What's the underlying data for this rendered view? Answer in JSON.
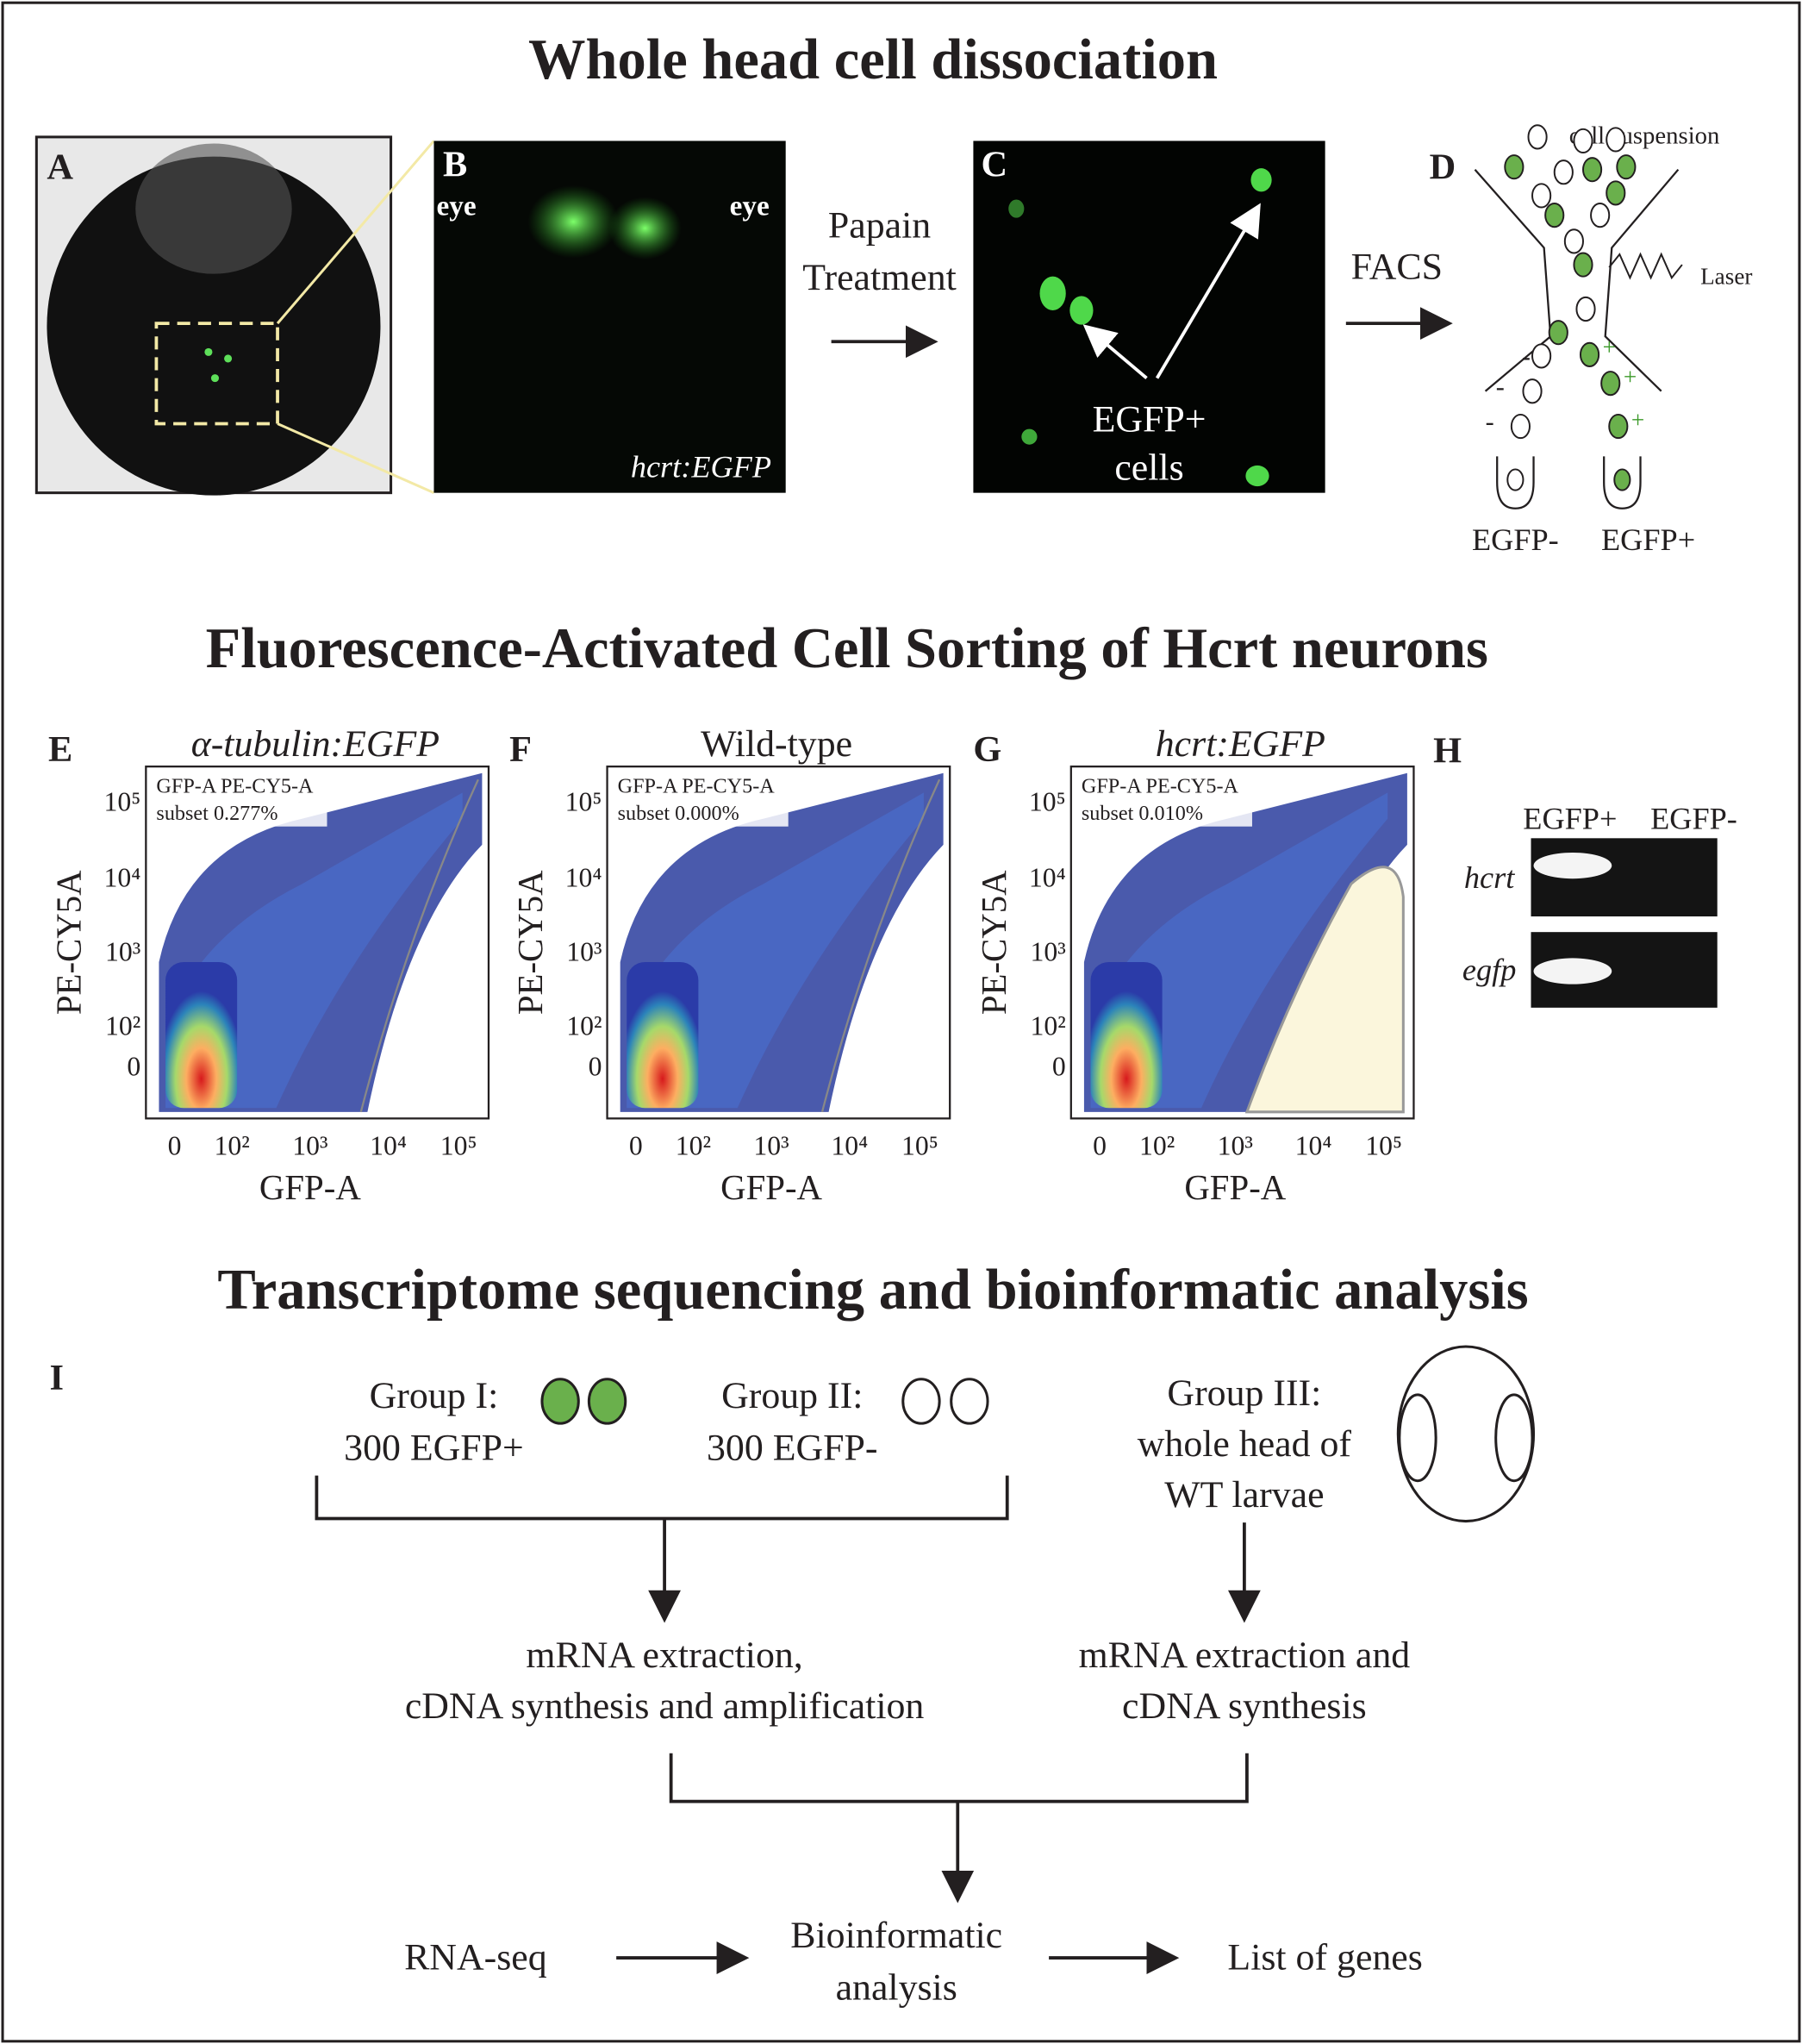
{
  "section_titles": [
    "Whole head cell dissociation",
    "Fluorescence-Activated Cell Sorting of Hcrt neurons",
    "Transcriptome sequencing and bioinformatic analysis"
  ],
  "panel_A": {
    "label": "A"
  },
  "panel_B": {
    "label": "B",
    "eye_left": "eye",
    "eye_right": "eye",
    "caption": "hcrt:EGFP"
  },
  "step_1": [
    "Papain",
    "Treatment"
  ],
  "panel_C": {
    "label": "C",
    "caption": [
      "EGFP+",
      "cells"
    ]
  },
  "step_2": "FACS",
  "panel_D": {
    "label": "D",
    "cell_suspension": "cell suspension",
    "laser": "Laser",
    "minus": "-",
    "plus": "+",
    "neg_label": "EGFP-",
    "pos_label": "EGFP+"
  },
  "facs_plots": [
    {
      "label": "E",
      "title": "α-tubulin:EGFP",
      "gate_text": [
        "GFP-A PE-CY5-A",
        "subset 0.277%"
      ],
      "x_label": "GFP-A",
      "y_label": "PE-CY5A",
      "x_ticks": [
        "0",
        "10²",
        "10³",
        "10⁴",
        "10⁵"
      ],
      "y_ticks": [
        "10⁵",
        "10⁴",
        "10³",
        "10²",
        "0"
      ]
    },
    {
      "label": "F",
      "title": "Wild-type",
      "gate_text": [
        "GFP-A PE-CY5-A",
        "subset 0.000%"
      ],
      "x_label": "GFP-A",
      "y_label": "PE-CY5A",
      "x_ticks": [
        "0",
        "10²",
        "10³",
        "10⁴",
        "10⁵"
      ],
      "y_ticks": [
        "10⁵",
        "10⁴",
        "10³",
        "10²",
        "0"
      ]
    },
    {
      "label": "G",
      "title": "hcrt:EGFP",
      "gate_text": [
        "GFP-A PE-CY5-A",
        "subset 0.010%"
      ],
      "x_label": "GFP-A",
      "y_label": "PE-CY5A",
      "x_ticks": [
        "0",
        "10²",
        "10³",
        "10⁴",
        "10⁵"
      ],
      "y_ticks": [
        "10⁵",
        "10⁴",
        "10³",
        "10²",
        "0"
      ]
    }
  ],
  "panel_H": {
    "label": "H",
    "columns": [
      "EGFP+",
      "EGFP-"
    ],
    "rows": [
      "hcrt",
      "egfp"
    ]
  },
  "panel_I": {
    "label": "I",
    "group_1": [
      "Group I:",
      "300 EGFP+"
    ],
    "group_2": [
      "Group II:",
      "300 EGFP-"
    ],
    "group_3": [
      "Group III:",
      "whole head of",
      "WT larvae"
    ],
    "step_a": [
      "mRNA extraction,",
      "cDNA synthesis and  amplification"
    ],
    "step_b": [
      "mRNA extraction and",
      "cDNA synthesis"
    ],
    "pipeline": [
      "RNA-seq",
      "Bioinformatic",
      "analysis",
      "List of genes"
    ]
  }
}
